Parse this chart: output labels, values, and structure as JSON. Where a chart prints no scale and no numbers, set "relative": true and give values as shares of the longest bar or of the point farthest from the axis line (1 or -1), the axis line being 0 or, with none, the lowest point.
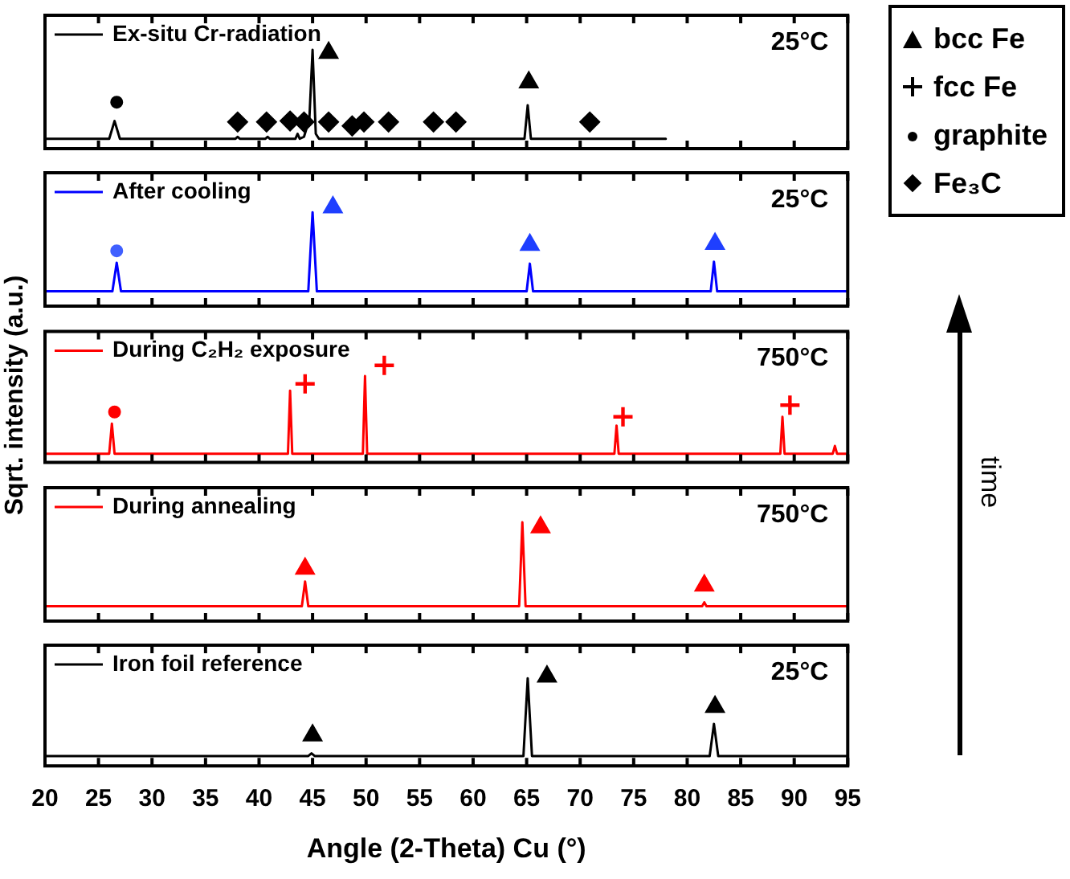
{
  "chart_data": [
    {
      "type": "line",
      "relative": true,
      "xlim": [
        20,
        95
      ],
      "xticks": [
        20,
        25,
        30,
        35,
        40,
        45,
        50,
        55,
        60,
        65,
        70,
        75,
        80,
        85,
        90,
        95
      ],
      "tick_labels": false,
      "legend": "top left",
      "annotations": [
        "25°C"
      ],
      "series": [
        {
          "name": "Ex-situ Cr-radiation",
          "color": "#000000",
          "x": [
            20,
            26.0,
            26.5,
            27.0,
            37.8,
            38.0,
            38.2,
            40.6,
            40.8,
            41.0,
            43.4,
            43.6,
            43.8,
            44.2,
            44.7,
            45.0,
            45.3,
            45.6,
            64.8,
            65.1,
            65.4,
            78
          ],
          "values": [
            0.1,
            0.1,
            0.28,
            0.1,
            0.1,
            0.12,
            0.1,
            0.1,
            0.12,
            0.1,
            0.1,
            0.15,
            0.1,
            0.12,
            0.3,
            1.0,
            0.15,
            0.1,
            0.1,
            0.44,
            0.1,
            0.1
          ]
        },
        {
          "type": "scatter",
          "marker": "triangle",
          "color": "#000000",
          "x": [
            46.5,
            65.2
          ],
          "values": [
            0.97,
            0.67
          ]
        },
        {
          "type": "scatter",
          "marker": "circle",
          "color": "#000000",
          "x": [
            26.7
          ],
          "values": [
            0.47
          ]
        },
        {
          "type": "scatter",
          "marker": "diamond",
          "color": "#000000",
          "x": [
            38.0,
            40.7,
            42.9,
            44.2,
            46.5,
            48.7,
            49.8,
            52.1,
            56.3,
            58.4,
            70.9
          ],
          "values": [
            0.27,
            0.27,
            0.28,
            0.27,
            0.27,
            0.23,
            0.27,
            0.27,
            0.27,
            0.27,
            0.27
          ]
        }
      ]
    },
    {
      "type": "line",
      "relative": true,
      "xlim": [
        20,
        95
      ],
      "xticks": [
        20,
        25,
        30,
        35,
        40,
        45,
        50,
        55,
        60,
        65,
        70,
        75,
        80,
        85,
        90,
        95
      ],
      "tick_labels": false,
      "legend": "top left",
      "annotations": [
        "25°C"
      ],
      "series": [
        {
          "name": "After cooling",
          "color": "#0000ff",
          "x": [
            20,
            26.3,
            26.7,
            27.1,
            44.6,
            45.0,
            45.4,
            65.0,
            65.3,
            65.6,
            82.2,
            82.5,
            82.8,
            95
          ],
          "values": [
            0.15,
            0.15,
            0.44,
            0.15,
            0.15,
            0.95,
            0.15,
            0.15,
            0.43,
            0.15,
            0.15,
            0.45,
            0.15,
            0.15
          ]
        },
        {
          "type": "scatter",
          "marker": "triangle",
          "color": "#1f3fff",
          "x": [
            46.9,
            65.3,
            82.6
          ],
          "values": [
            1.0,
            0.62,
            0.63
          ]
        },
        {
          "type": "scatter",
          "marker": "circle",
          "color": "#4060ff",
          "x": [
            26.7
          ],
          "values": [
            0.56
          ]
        }
      ]
    },
    {
      "type": "line",
      "relative": true,
      "xlim": [
        20,
        95
      ],
      "xticks": [
        20,
        25,
        30,
        35,
        40,
        45,
        50,
        55,
        60,
        65,
        70,
        75,
        80,
        85,
        90,
        95
      ],
      "tick_labels": false,
      "legend": "top left",
      "ylabel": "Sqrt. intensity (a.u.)",
      "annotations": [
        "750°C"
      ],
      "series": [
        {
          "name": "During C₂H₂ exposure",
          "color": "#ff0000",
          "x": [
            20,
            26.0,
            26.25,
            26.5,
            42.7,
            42.9,
            43.1,
            49.7,
            49.9,
            50.1,
            73.2,
            73.4,
            73.6,
            88.7,
            88.9,
            89.1,
            93.6,
            93.8,
            94.0,
            95
          ],
          "values": [
            0.09,
            0.09,
            0.4,
            0.09,
            0.09,
            0.74,
            0.09,
            0.09,
            0.89,
            0.09,
            0.09,
            0.38,
            0.09,
            0.09,
            0.47,
            0.09,
            0.09,
            0.17,
            0.09,
            0.09
          ]
        },
        {
          "type": "scatter",
          "marker": "cross",
          "color": "#ff0000",
          "x": [
            44.3,
            51.7,
            74.0,
            89.6
          ],
          "values": [
            0.81,
            1.0,
            0.47,
            0.59
          ]
        },
        {
          "type": "scatter",
          "marker": "circle",
          "color": "#ff0000",
          "x": [
            26.5
          ],
          "values": [
            0.52
          ]
        }
      ]
    },
    {
      "type": "line",
      "relative": true,
      "xlim": [
        20,
        95
      ],
      "xticks": [
        20,
        25,
        30,
        35,
        40,
        45,
        50,
        55,
        60,
        65,
        70,
        75,
        80,
        85,
        90,
        95
      ],
      "tick_labels": false,
      "legend": "top left",
      "annotations": [
        "750°C"
      ],
      "series": [
        {
          "name": "During annealing",
          "color": "#ff0000",
          "x": [
            20,
            44.0,
            44.3,
            44.6,
            64.3,
            64.6,
            64.9,
            81.4,
            81.6,
            81.8,
            95
          ],
          "values": [
            0.15,
            0.15,
            0.4,
            0.15,
            0.15,
            1.0,
            0.15,
            0.15,
            0.19,
            0.15,
            0.15
          ]
        },
        {
          "type": "scatter",
          "marker": "triangle",
          "color": "#ff0000",
          "x": [
            44.3,
            66.3,
            81.6
          ],
          "values": [
            0.53,
            0.95,
            0.36
          ]
        }
      ]
    },
    {
      "type": "line",
      "relative": true,
      "xlim": [
        20,
        95
      ],
      "xticks": [
        20,
        25,
        30,
        35,
        40,
        45,
        50,
        55,
        60,
        65,
        70,
        75,
        80,
        85,
        90,
        95
      ],
      "tick_labels": "x",
      "legend": "top left",
      "xlabel": "Angle (2-Theta) Cu (°)",
      "annotations": [
        "25°C"
      ],
      "series": [
        {
          "name": "Iron foil reference",
          "color": "#000000",
          "x": [
            20,
            44.6,
            44.9,
            45.2,
            64.7,
            65.1,
            65.5,
            82.1,
            82.5,
            82.9,
            95
          ],
          "values": [
            0.11,
            0.11,
            0.14,
            0.11,
            0.11,
            0.98,
            0.11,
            0.11,
            0.47,
            0.11,
            0.11
          ]
        },
        {
          "type": "scatter",
          "marker": "triangle",
          "color": "#000000",
          "x": [
            45.0,
            66.9,
            82.6
          ],
          "values": [
            0.34,
            1.0,
            0.66
          ]
        }
      ]
    },
    {
      "type": "other",
      "annotations": [
        "bcc Fe",
        "fcc Fe",
        "graphite",
        "Fe₃C",
        "time"
      ]
    }
  ]
}
